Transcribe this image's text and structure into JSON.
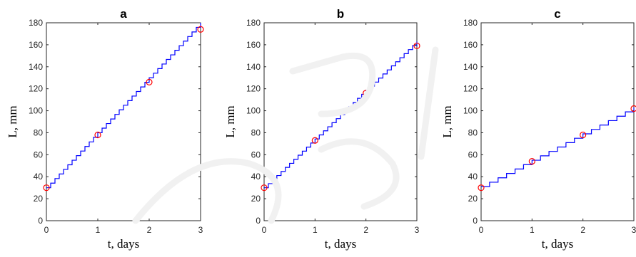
{
  "colors": {
    "staircase": "#0000ff",
    "markers": "#ff0000",
    "axes": "#262626"
  },
  "chart_data": [
    {
      "type": "line",
      "title": "a",
      "xlabel": "t, days",
      "ylabel": "L, mm",
      "xlim": [
        0,
        3
      ],
      "ylim": [
        0,
        180
      ],
      "xticks": [
        "0",
        "1",
        "2",
        "3"
      ],
      "yticks": [
        "0",
        "20",
        "40",
        "60",
        "80",
        "100",
        "120",
        "140",
        "160",
        "180"
      ],
      "grid": false,
      "series": [
        {
          "style": "staircase",
          "x_start": 0,
          "x_end": 3,
          "y_start": 30,
          "y_end": 180,
          "steps": 36
        },
        {
          "style": "markers",
          "x": [
            0,
            1,
            2,
            3
          ],
          "y": [
            30,
            78,
            126,
            174
          ]
        }
      ]
    },
    {
      "type": "line",
      "title": "b",
      "xlabel": "t, days",
      "ylabel": "L, mm",
      "xlim": [
        0,
        3
      ],
      "ylim": [
        0,
        180
      ],
      "xticks": [
        "0",
        "1",
        "2",
        "3"
      ],
      "yticks": [
        "0",
        "20",
        "40",
        "60",
        "80",
        "100",
        "120",
        "140",
        "160",
        "180"
      ],
      "grid": false,
      "series": [
        {
          "style": "staircase",
          "x_start": 0,
          "x_end": 3,
          "y_start": 30,
          "y_end": 163,
          "steps": 36
        },
        {
          "style": "markers",
          "x": [
            0,
            1,
            2,
            3
          ],
          "y": [
            30,
            73,
            116,
            159
          ]
        }
      ]
    },
    {
      "type": "line",
      "title": "c",
      "xlabel": "t, days",
      "ylabel": "L, mm",
      "xlim": [
        0,
        3
      ],
      "ylim": [
        0,
        180
      ],
      "xticks": [
        "0",
        "1",
        "2",
        "3"
      ],
      "yticks": [
        "0",
        "20",
        "40",
        "60",
        "80",
        "100",
        "120",
        "140",
        "160",
        "180"
      ],
      "grid": false,
      "series": [
        {
          "style": "staircase",
          "x_start": 0,
          "x_end": 3,
          "y_start": 31,
          "y_end": 103,
          "steps": 18
        },
        {
          "style": "markers",
          "x": [
            0,
            1,
            2,
            3
          ],
          "y": [
            30,
            54,
            78,
            102
          ]
        }
      ]
    }
  ]
}
